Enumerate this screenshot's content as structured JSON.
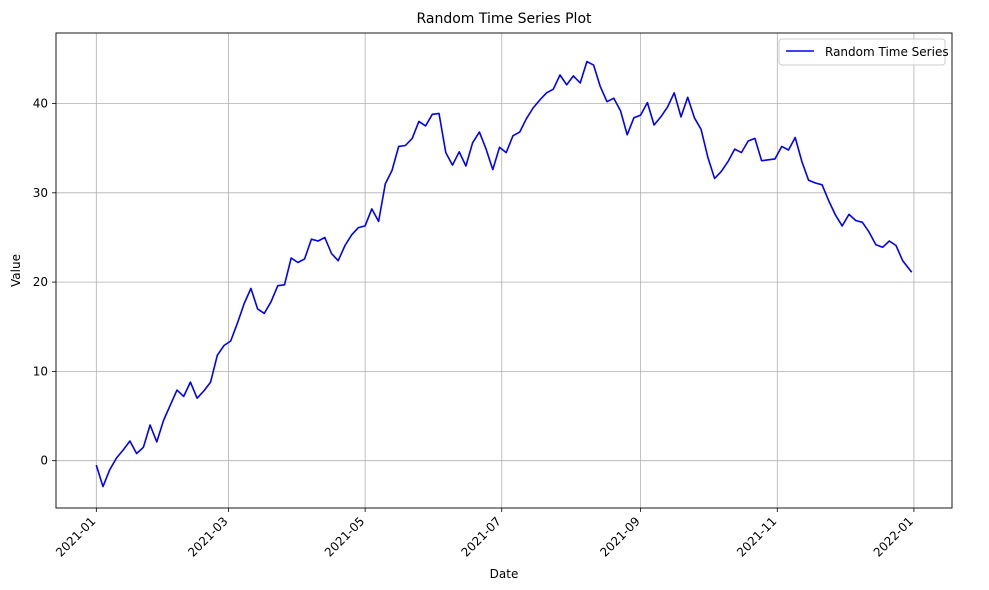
{
  "chart_data": {
    "type": "line",
    "title": "Random Time Series Plot",
    "xlabel": "Date",
    "ylabel": "Value",
    "xlim": [
      "2020-12-14",
      "2022-01-18"
    ],
    "ylim": [
      -5.3,
      47.9
    ],
    "x_ticks": [
      "2021-01",
      "2021-03",
      "2021-05",
      "2021-07",
      "2021-09",
      "2021-11",
      "2022-01"
    ],
    "y_ticks": [
      0,
      10,
      20,
      30,
      40
    ],
    "grid": true,
    "legend_position": "top-right",
    "colors": {
      "line": "#0000ff",
      "grid": "#b0b0b0"
    },
    "series": [
      {
        "name": "Random Time Series",
        "x": [
          "2021-01-01",
          "2021-01-04",
          "2021-01-07",
          "2021-01-10",
          "2021-01-13",
          "2021-01-16",
          "2021-01-19",
          "2021-01-22",
          "2021-01-25",
          "2021-01-28",
          "2021-01-31",
          "2021-02-03",
          "2021-02-06",
          "2021-02-09",
          "2021-02-12",
          "2021-02-15",
          "2021-02-18",
          "2021-02-21",
          "2021-02-24",
          "2021-02-27",
          "2021-03-02",
          "2021-03-05",
          "2021-03-08",
          "2021-03-11",
          "2021-03-14",
          "2021-03-17",
          "2021-03-20",
          "2021-03-23",
          "2021-03-26",
          "2021-03-29",
          "2021-04-01",
          "2021-04-04",
          "2021-04-07",
          "2021-04-10",
          "2021-04-13",
          "2021-04-16",
          "2021-04-19",
          "2021-04-22",
          "2021-04-25",
          "2021-04-28",
          "2021-05-01",
          "2021-05-04",
          "2021-05-07",
          "2021-05-10",
          "2021-05-13",
          "2021-05-16",
          "2021-05-19",
          "2021-05-22",
          "2021-05-25",
          "2021-05-28",
          "2021-05-31",
          "2021-06-03",
          "2021-06-06",
          "2021-06-09",
          "2021-06-12",
          "2021-06-15",
          "2021-06-18",
          "2021-06-21",
          "2021-06-24",
          "2021-06-27",
          "2021-06-30",
          "2021-07-03",
          "2021-07-06",
          "2021-07-09",
          "2021-07-12",
          "2021-07-15",
          "2021-07-18",
          "2021-07-21",
          "2021-07-24",
          "2021-07-27",
          "2021-07-30",
          "2021-08-02",
          "2021-08-05",
          "2021-08-08",
          "2021-08-11",
          "2021-08-14",
          "2021-08-17",
          "2021-08-20",
          "2021-08-23",
          "2021-08-26",
          "2021-08-29",
          "2021-09-01",
          "2021-09-04",
          "2021-09-07",
          "2021-09-10",
          "2021-09-13",
          "2021-09-16",
          "2021-09-19",
          "2021-09-22",
          "2021-09-25",
          "2021-09-28",
          "2021-10-01",
          "2021-10-04",
          "2021-10-07",
          "2021-10-10",
          "2021-10-13",
          "2021-10-16",
          "2021-10-19",
          "2021-10-22",
          "2021-10-25",
          "2021-10-28",
          "2021-10-31",
          "2021-11-03",
          "2021-11-06",
          "2021-11-09",
          "2021-11-12",
          "2021-11-15",
          "2021-11-18",
          "2021-11-21",
          "2021-11-24",
          "2021-11-27",
          "2021-11-30",
          "2021-12-03",
          "2021-12-06",
          "2021-12-09",
          "2021-12-12",
          "2021-12-15",
          "2021-12-18",
          "2021-12-21",
          "2021-12-24",
          "2021-12-27",
          "2021-12-31"
        ],
        "values": [
          -0.5,
          -2.9,
          -1.0,
          0.3,
          1.2,
          2.2,
          0.8,
          1.5,
          4.0,
          2.1,
          4.5,
          6.2,
          7.9,
          7.2,
          8.8,
          7.0,
          7.8,
          8.8,
          11.8,
          12.9,
          13.4,
          15.4,
          17.6,
          19.3,
          17.0,
          16.5,
          17.8,
          19.6,
          19.7,
          22.7,
          22.2,
          22.6,
          24.8,
          24.6,
          25.0,
          23.2,
          22.4,
          24.1,
          25.3,
          26.1,
          26.3,
          28.2,
          26.8,
          31.0,
          32.5,
          35.2,
          35.3,
          36.1,
          38.0,
          37.5,
          38.8,
          38.9,
          34.5,
          33.1,
          34.6,
          33.0,
          35.6,
          36.8,
          34.9,
          32.6,
          35.1,
          34.5,
          36.4,
          36.8,
          38.3,
          39.5,
          40.4,
          41.2,
          41.6,
          43.2,
          42.1,
          43.1,
          42.3,
          44.7,
          44.3,
          41.9,
          40.2,
          40.6,
          39.2,
          36.5,
          38.4,
          38.7,
          40.1,
          37.6,
          38.5,
          39.6,
          41.2,
          38.5,
          40.7,
          38.4,
          37.1,
          34.0,
          31.6,
          32.4,
          33.5,
          34.9,
          34.5,
          35.8,
          36.1,
          33.6,
          33.7,
          33.8,
          35.2,
          34.8,
          36.2,
          33.5,
          31.4,
          31.1,
          30.9,
          29.1,
          27.5,
          26.3,
          27.6,
          26.9,
          26.7,
          25.6,
          24.2,
          23.9,
          24.6,
          24.1,
          22.4,
          21.1
        ]
      }
    ]
  }
}
